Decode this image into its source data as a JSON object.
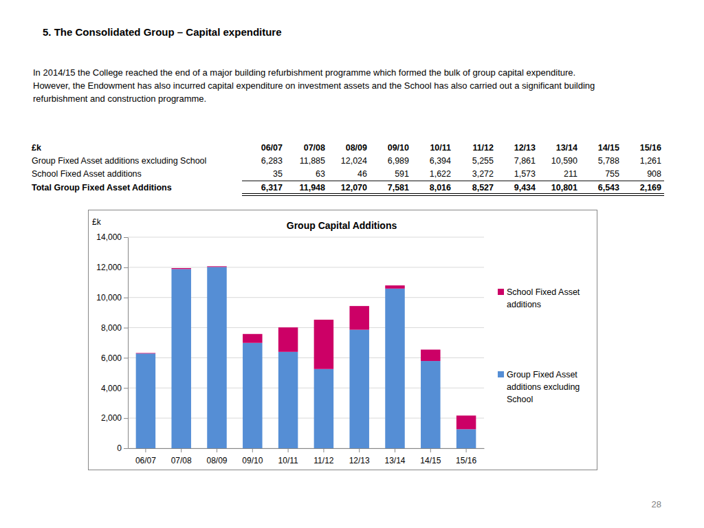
{
  "heading": "5. The Consolidated Group – Capital expenditure",
  "paragraph": [
    "In 2014/15 the College reached the end of a major building refurbishment programme which formed the bulk of group capital expenditure.",
    "However, the Endowment has also incurred capital expenditure on investment assets and the School has also carried out a significant building",
    "refurbishment and construction programme."
  ],
  "table": {
    "unit_label": "£k",
    "columns": [
      "06/07",
      "07/08",
      "08/09",
      "09/10",
      "10/11",
      "11/12",
      "12/13",
      "13/14",
      "14/15",
      "15/16"
    ],
    "rows": [
      {
        "label": "Group Fixed Asset additions excluding School",
        "values": [
          "6,283",
          "11,885",
          "12,024",
          "6,989",
          "6,394",
          "5,255",
          "7,861",
          "10,590",
          "5,788",
          "1,261"
        ]
      },
      {
        "label": "School Fixed Asset additions",
        "values": [
          "35",
          "63",
          "46",
          "591",
          "1,622",
          "3,272",
          "1,573",
          "211",
          "755",
          "908"
        ]
      },
      {
        "label": "Total Group Fixed Asset Additions",
        "values": [
          "6,317",
          "11,948",
          "12,070",
          "7,581",
          "8,016",
          "8,527",
          "9,434",
          "10,801",
          "6,543",
          "2,169"
        ]
      }
    ]
  },
  "page_number": "28",
  "chart_data": {
    "type": "bar",
    "title": "Group Capital Additions",
    "ylabel": "£k",
    "categories": [
      "06/07",
      "07/08",
      "08/09",
      "09/10",
      "10/11",
      "11/12",
      "12/13",
      "13/14",
      "14/15",
      "15/16"
    ],
    "series": [
      {
        "name": "Group Fixed Asset additions excluding School",
        "color": "#558ed5",
        "values": [
          6283,
          11885,
          12024,
          6989,
          6394,
          5255,
          7861,
          10590,
          5788,
          1261
        ]
      },
      {
        "name": "School Fixed Asset additions",
        "color": "#cc0066",
        "values": [
          35,
          63,
          46,
          591,
          1622,
          3272,
          1573,
          211,
          755,
          908
        ]
      }
    ],
    "stacked": true,
    "ylim": [
      0,
      14000
    ],
    "yticks": [
      0,
      {
        "value": 2000,
        "label": "2,000"
      },
      {
        "value": 4000,
        "label": "4,000"
      },
      {
        "value": 6000,
        "label": "6,000"
      },
      {
        "value": 8000,
        "label": "8,000"
      },
      {
        "value": 10000,
        "label": "10,000"
      },
      {
        "value": 12000,
        "label": "12,000"
      },
      {
        "value": 14000,
        "label": "14,000"
      }
    ],
    "grid": true,
    "legend": "right"
  }
}
